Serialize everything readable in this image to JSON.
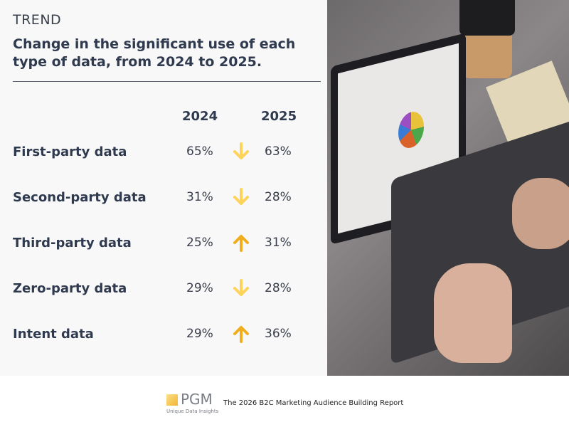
{
  "kicker": "TREND",
  "title": "Change in the significant use of each type of data, from 2024 to 2025.",
  "columns": [
    "2024",
    "2025"
  ],
  "rows": [
    {
      "label": "First-party data",
      "v2024": "65%",
      "v2025": "63%",
      "trend": "down"
    },
    {
      "label": "Second-party data",
      "v2024": "31%",
      "v2025": "28%",
      "trend": "down"
    },
    {
      "label": "Third-party data",
      "v2024": "25%",
      "v2025": "31%",
      "trend": "up"
    },
    {
      "label": "Zero-party data",
      "v2024": "29%",
      "v2025": "28%",
      "trend": "down"
    },
    {
      "label": "Intent data",
      "v2024": "29%",
      "v2025": "36%",
      "trend": "up"
    }
  ],
  "colors": {
    "down": "#fdd35a",
    "up": "#f0ae1e"
  },
  "footer": {
    "logo": "PGM",
    "logo_tagline": "Unique Data Insights",
    "report": "The 2026 B2C Marketing Audience Building Report"
  }
}
